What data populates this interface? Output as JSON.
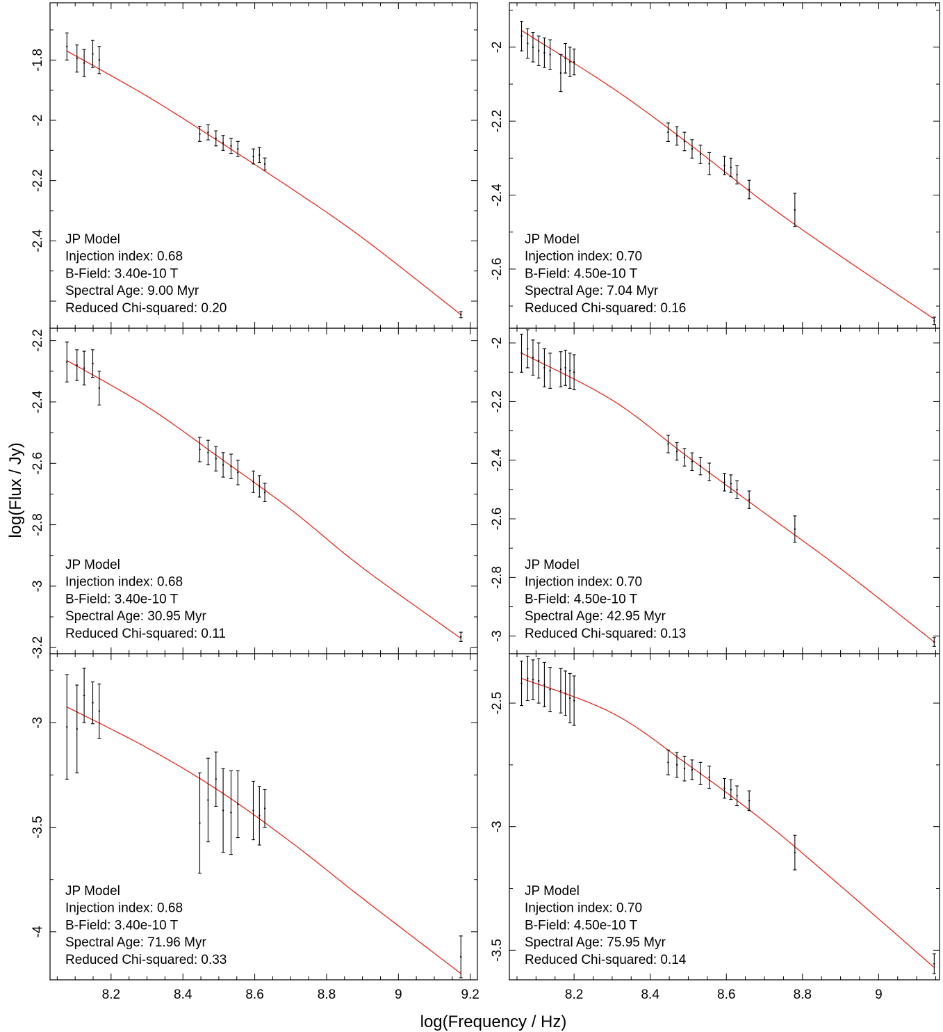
{
  "xlabel": "log(Frequency / Hz)",
  "ylabel": "log(Flux / Jy)",
  "colors": {
    "model_curve": "#e8281e",
    "data": "#000000",
    "frame": "#000000"
  },
  "chart_data": [
    {
      "type": "scatter",
      "panel": "left-top",
      "xlim": [
        8.03,
        9.22
      ],
      "ylim": [
        -2.69,
        -1.61
      ],
      "xticks": [],
      "yticks": [
        -1.8,
        -2.0,
        -2.2,
        -2.4
      ],
      "legend": {
        "placement": "bottom-left",
        "lines": [
          "JP Model",
          "Injection index: 0.68",
          "B-Field: 3.40e-10 T",
          "Spectral Age: 9.00 Myr",
          "Reduced Chi-squared: 0.20"
        ]
      },
      "points": [
        {
          "x": 8.077,
          "y": -1.755,
          "err": 0.045
        },
        {
          "x": 8.105,
          "y": -1.795,
          "err": 0.045
        },
        {
          "x": 8.125,
          "y": -1.81,
          "err": 0.045
        },
        {
          "x": 8.149,
          "y": -1.78,
          "err": 0.045
        },
        {
          "x": 8.167,
          "y": -1.8,
          "err": 0.045
        },
        {
          "x": 8.447,
          "y": -2.045,
          "err": 0.025
        },
        {
          "x": 8.47,
          "y": -2.04,
          "err": 0.025
        },
        {
          "x": 8.492,
          "y": -2.06,
          "err": 0.025
        },
        {
          "x": 8.512,
          "y": -2.075,
          "err": 0.025
        },
        {
          "x": 8.534,
          "y": -2.085,
          "err": 0.025
        },
        {
          "x": 8.553,
          "y": -2.095,
          "err": 0.025
        },
        {
          "x": 8.596,
          "y": -2.12,
          "err": 0.025
        },
        {
          "x": 8.613,
          "y": -2.115,
          "err": 0.025
        },
        {
          "x": 8.628,
          "y": -2.145,
          "err": 0.02
        },
        {
          "x": 9.174,
          "y": -2.645,
          "err": 0.01
        }
      ],
      "model": [
        {
          "x": 8.077,
          "y": -1.77
        },
        {
          "x": 8.3,
          "y": -1.92
        },
        {
          "x": 8.5,
          "y": -2.07
        },
        {
          "x": 8.7,
          "y": -2.225
        },
        {
          "x": 8.9,
          "y": -2.39
        },
        {
          "x": 9.174,
          "y": -2.645
        }
      ]
    },
    {
      "type": "scatter",
      "panel": "right-top",
      "xlim": [
        8.03,
        9.16
      ],
      "ylim": [
        -2.76,
        -1.88
      ],
      "xticks": [],
      "yticks": [
        -2.0,
        -2.2,
        -2.4,
        -2.6
      ],
      "legend": {
        "placement": "bottom-left",
        "lines": [
          "JP Model",
          "Injection index: 0.70",
          "B-Field: 4.50e-10 T",
          "Spectral Age: 7.04 Myr",
          "Reduced Chi-squared: 0.16"
        ]
      },
      "points": [
        {
          "x": 8.062,
          "y": -1.97,
          "err": 0.04
        },
        {
          "x": 8.078,
          "y": -1.99,
          "err": 0.04
        },
        {
          "x": 8.092,
          "y": -2.0,
          "err": 0.04
        },
        {
          "x": 8.107,
          "y": -2.01,
          "err": 0.04
        },
        {
          "x": 8.122,
          "y": -2.015,
          "err": 0.04
        },
        {
          "x": 8.137,
          "y": -2.02,
          "err": 0.04
        },
        {
          "x": 8.165,
          "y": -2.07,
          "err": 0.05
        },
        {
          "x": 8.177,
          "y": -2.03,
          "err": 0.04
        },
        {
          "x": 8.189,
          "y": -2.04,
          "err": 0.04
        },
        {
          "x": 8.2,
          "y": -2.04,
          "err": 0.035
        },
        {
          "x": 8.447,
          "y": -2.23,
          "err": 0.025
        },
        {
          "x": 8.47,
          "y": -2.24,
          "err": 0.025
        },
        {
          "x": 8.49,
          "y": -2.255,
          "err": 0.025
        },
        {
          "x": 8.51,
          "y": -2.275,
          "err": 0.025
        },
        {
          "x": 8.532,
          "y": -2.29,
          "err": 0.025
        },
        {
          "x": 8.555,
          "y": -2.315,
          "err": 0.03
        },
        {
          "x": 8.595,
          "y": -2.32,
          "err": 0.025
        },
        {
          "x": 8.612,
          "y": -2.325,
          "err": 0.025
        },
        {
          "x": 8.628,
          "y": -2.345,
          "err": 0.025
        },
        {
          "x": 8.66,
          "y": -2.385,
          "err": 0.025
        },
        {
          "x": 8.78,
          "y": -2.44,
          "err": 0.045
        },
        {
          "x": 9.146,
          "y": -2.74,
          "err": 0.01
        }
      ],
      "model": [
        {
          "x": 8.062,
          "y": -1.955
        },
        {
          "x": 8.3,
          "y": -2.11
        },
        {
          "x": 8.5,
          "y": -2.26
        },
        {
          "x": 8.7,
          "y": -2.42
        },
        {
          "x": 8.9,
          "y": -2.565
        },
        {
          "x": 9.146,
          "y": -2.735
        }
      ]
    },
    {
      "type": "scatter",
      "panel": "left-middle",
      "xlim": [
        8.03,
        9.22
      ],
      "ylim": [
        -3.22,
        -2.16
      ],
      "xticks": [],
      "yticks": [
        -2.2,
        -2.4,
        -2.6,
        -2.8,
        -3.0,
        -3.2
      ],
      "legend": {
        "placement": "bottom-left",
        "lines": [
          "JP Model",
          "Injection index: 0.68",
          "B-Field: 3.40e-10 T",
          "Spectral Age: 30.95 Myr",
          "Reduced Chi-squared: 0.11"
        ]
      },
      "points": [
        {
          "x": 8.077,
          "y": -2.27,
          "err": 0.065
        },
        {
          "x": 8.105,
          "y": -2.28,
          "err": 0.05
        },
        {
          "x": 8.125,
          "y": -2.29,
          "err": 0.055
        },
        {
          "x": 8.149,
          "y": -2.275,
          "err": 0.045
        },
        {
          "x": 8.167,
          "y": -2.355,
          "err": 0.055
        },
        {
          "x": 8.447,
          "y": -2.555,
          "err": 0.04
        },
        {
          "x": 8.47,
          "y": -2.565,
          "err": 0.04
        },
        {
          "x": 8.492,
          "y": -2.585,
          "err": 0.04
        },
        {
          "x": 8.512,
          "y": -2.605,
          "err": 0.04
        },
        {
          "x": 8.534,
          "y": -2.61,
          "err": 0.04
        },
        {
          "x": 8.553,
          "y": -2.63,
          "err": 0.04
        },
        {
          "x": 8.596,
          "y": -2.66,
          "err": 0.035
        },
        {
          "x": 8.613,
          "y": -2.675,
          "err": 0.035
        },
        {
          "x": 8.628,
          "y": -2.695,
          "err": 0.03
        },
        {
          "x": 9.174,
          "y": -3.165,
          "err": 0.015
        }
      ],
      "model": [
        {
          "x": 8.077,
          "y": -2.265
        },
        {
          "x": 8.3,
          "y": -2.415
        },
        {
          "x": 8.5,
          "y": -2.58
        },
        {
          "x": 8.7,
          "y": -2.75
        },
        {
          "x": 8.9,
          "y": -2.94
        },
        {
          "x": 9.174,
          "y": -3.17
        }
      ]
    },
    {
      "type": "scatter",
      "panel": "right-middle",
      "xlim": [
        8.03,
        9.16
      ],
      "ylim": [
        -3.06,
        -1.95
      ],
      "xticks": [],
      "yticks": [
        -2.0,
        -2.2,
        -2.4,
        -2.6,
        -2.8,
        -3.0
      ],
      "legend": {
        "placement": "bottom-left",
        "lines": [
          "JP Model",
          "Injection index: 0.70",
          "B-Field: 4.50e-10 T",
          "Spectral Age: 42.95 Myr",
          "Reduced Chi-squared: 0.13"
        ]
      },
      "points": [
        {
          "x": 8.062,
          "y": -2.035,
          "err": 0.065
        },
        {
          "x": 8.078,
          "y": -2.02,
          "err": 0.065
        },
        {
          "x": 8.092,
          "y": -2.05,
          "err": 0.06
        },
        {
          "x": 8.107,
          "y": -2.06,
          "err": 0.06
        },
        {
          "x": 8.122,
          "y": -2.085,
          "err": 0.065
        },
        {
          "x": 8.137,
          "y": -2.095,
          "err": 0.06
        },
        {
          "x": 8.165,
          "y": -2.09,
          "err": 0.06
        },
        {
          "x": 8.177,
          "y": -2.085,
          "err": 0.06
        },
        {
          "x": 8.189,
          "y": -2.095,
          "err": 0.06
        },
        {
          "x": 8.2,
          "y": -2.1,
          "err": 0.06
        },
        {
          "x": 8.447,
          "y": -2.345,
          "err": 0.03
        },
        {
          "x": 8.47,
          "y": -2.37,
          "err": 0.03
        },
        {
          "x": 8.49,
          "y": -2.39,
          "err": 0.03
        },
        {
          "x": 8.51,
          "y": -2.405,
          "err": 0.03
        },
        {
          "x": 8.532,
          "y": -2.42,
          "err": 0.03
        },
        {
          "x": 8.555,
          "y": -2.44,
          "err": 0.03
        },
        {
          "x": 8.595,
          "y": -2.475,
          "err": 0.03
        },
        {
          "x": 8.612,
          "y": -2.48,
          "err": 0.03
        },
        {
          "x": 8.628,
          "y": -2.5,
          "err": 0.03
        },
        {
          "x": 8.66,
          "y": -2.535,
          "err": 0.03
        },
        {
          "x": 8.78,
          "y": -2.635,
          "err": 0.045
        },
        {
          "x": 9.146,
          "y": -3.02,
          "err": 0.015
        }
      ],
      "model": [
        {
          "x": 8.062,
          "y": -2.035
        },
        {
          "x": 8.3,
          "y": -2.195
        },
        {
          "x": 8.5,
          "y": -2.39
        },
        {
          "x": 8.7,
          "y": -2.58
        },
        {
          "x": 8.9,
          "y": -2.77
        },
        {
          "x": 9.146,
          "y": -3.02
        }
      ]
    },
    {
      "type": "scatter",
      "panel": "left-bottom",
      "xlim": [
        8.03,
        9.22
      ],
      "ylim": [
        -4.23,
        -2.67
      ],
      "xticks": [
        8.2,
        8.4,
        8.6,
        8.8,
        9.0,
        9.2
      ],
      "yticks": [
        -3.0,
        -3.5,
        -4.0
      ],
      "legend": {
        "placement": "bottom-left",
        "lines": [
          "JP Model",
          "Injection index: 0.68",
          "B-Field: 3.40e-10 T",
          "Spectral Age: 71.96 Myr",
          "Reduced Chi-squared: 0.33"
        ]
      },
      "points": [
        {
          "x": 8.077,
          "y": -3.02,
          "err": 0.25
        },
        {
          "x": 8.105,
          "y": -3.03,
          "err": 0.21
        },
        {
          "x": 8.125,
          "y": -2.87,
          "err": 0.13
        },
        {
          "x": 8.149,
          "y": -2.905,
          "err": 0.1
        },
        {
          "x": 8.167,
          "y": -2.945,
          "err": 0.13
        },
        {
          "x": 8.447,
          "y": -3.48,
          "err": 0.24
        },
        {
          "x": 8.47,
          "y": -3.37,
          "err": 0.2
        },
        {
          "x": 8.492,
          "y": -3.27,
          "err": 0.13
        },
        {
          "x": 8.512,
          "y": -3.42,
          "err": 0.2
        },
        {
          "x": 8.534,
          "y": -3.43,
          "err": 0.2
        },
        {
          "x": 8.553,
          "y": -3.39,
          "err": 0.16
        },
        {
          "x": 8.596,
          "y": -3.42,
          "err": 0.14
        },
        {
          "x": 8.613,
          "y": -3.445,
          "err": 0.14
        },
        {
          "x": 8.628,
          "y": -3.41,
          "err": 0.09
        },
        {
          "x": 9.174,
          "y": -4.12,
          "err": 0.1
        }
      ],
      "model": [
        {
          "x": 8.077,
          "y": -2.925
        },
        {
          "x": 8.3,
          "y": -3.12
        },
        {
          "x": 8.5,
          "y": -3.325
        },
        {
          "x": 8.7,
          "y": -3.57
        },
        {
          "x": 8.9,
          "y": -3.84
        },
        {
          "x": 9.174,
          "y": -4.2
        }
      ]
    },
    {
      "type": "scatter",
      "panel": "right-bottom",
      "xlim": [
        8.03,
        9.16
      ],
      "ylim": [
        -3.62,
        -2.3
      ],
      "xticks": [
        8.2,
        8.4,
        8.6,
        8.8,
        9.0
      ],
      "yticks": [
        -2.5,
        -3.0,
        -3.5
      ],
      "legend": {
        "placement": "bottom-left",
        "lines": [
          "JP Model",
          "Injection index: 0.70",
          "B-Field: 4.50e-10 T",
          "Spectral Age: 75.95 Myr",
          "Reduced Chi-squared: 0.14"
        ]
      },
      "points": [
        {
          "x": 8.062,
          "y": -2.42,
          "err": 0.09
        },
        {
          "x": 8.078,
          "y": -2.4,
          "err": 0.09
        },
        {
          "x": 8.092,
          "y": -2.405,
          "err": 0.08
        },
        {
          "x": 8.107,
          "y": -2.41,
          "err": 0.09
        },
        {
          "x": 8.122,
          "y": -2.425,
          "err": 0.09
        },
        {
          "x": 8.137,
          "y": -2.445,
          "err": 0.09
        },
        {
          "x": 8.165,
          "y": -2.45,
          "err": 0.09
        },
        {
          "x": 8.177,
          "y": -2.46,
          "err": 0.09
        },
        {
          "x": 8.189,
          "y": -2.48,
          "err": 0.1
        },
        {
          "x": 8.2,
          "y": -2.49,
          "err": 0.1
        },
        {
          "x": 8.447,
          "y": -2.74,
          "err": 0.05
        },
        {
          "x": 8.47,
          "y": -2.75,
          "err": 0.05
        },
        {
          "x": 8.49,
          "y": -2.765,
          "err": 0.05
        },
        {
          "x": 8.51,
          "y": -2.77,
          "err": 0.04
        },
        {
          "x": 8.532,
          "y": -2.785,
          "err": 0.045
        },
        {
          "x": 8.555,
          "y": -2.8,
          "err": 0.045
        },
        {
          "x": 8.595,
          "y": -2.845,
          "err": 0.04
        },
        {
          "x": 8.612,
          "y": -2.85,
          "err": 0.04
        },
        {
          "x": 8.628,
          "y": -2.875,
          "err": 0.04
        },
        {
          "x": 8.66,
          "y": -2.895,
          "err": 0.04
        },
        {
          "x": 8.78,
          "y": -3.105,
          "err": 0.07
        },
        {
          "x": 9.146,
          "y": -3.555,
          "err": 0.04
        }
      ],
      "model": [
        {
          "x": 8.062,
          "y": -2.4
        },
        {
          "x": 8.3,
          "y": -2.54
        },
        {
          "x": 8.5,
          "y": -2.75
        },
        {
          "x": 8.7,
          "y": -2.98
        },
        {
          "x": 8.9,
          "y": -3.24
        },
        {
          "x": 9.146,
          "y": -3.57
        }
      ]
    }
  ]
}
